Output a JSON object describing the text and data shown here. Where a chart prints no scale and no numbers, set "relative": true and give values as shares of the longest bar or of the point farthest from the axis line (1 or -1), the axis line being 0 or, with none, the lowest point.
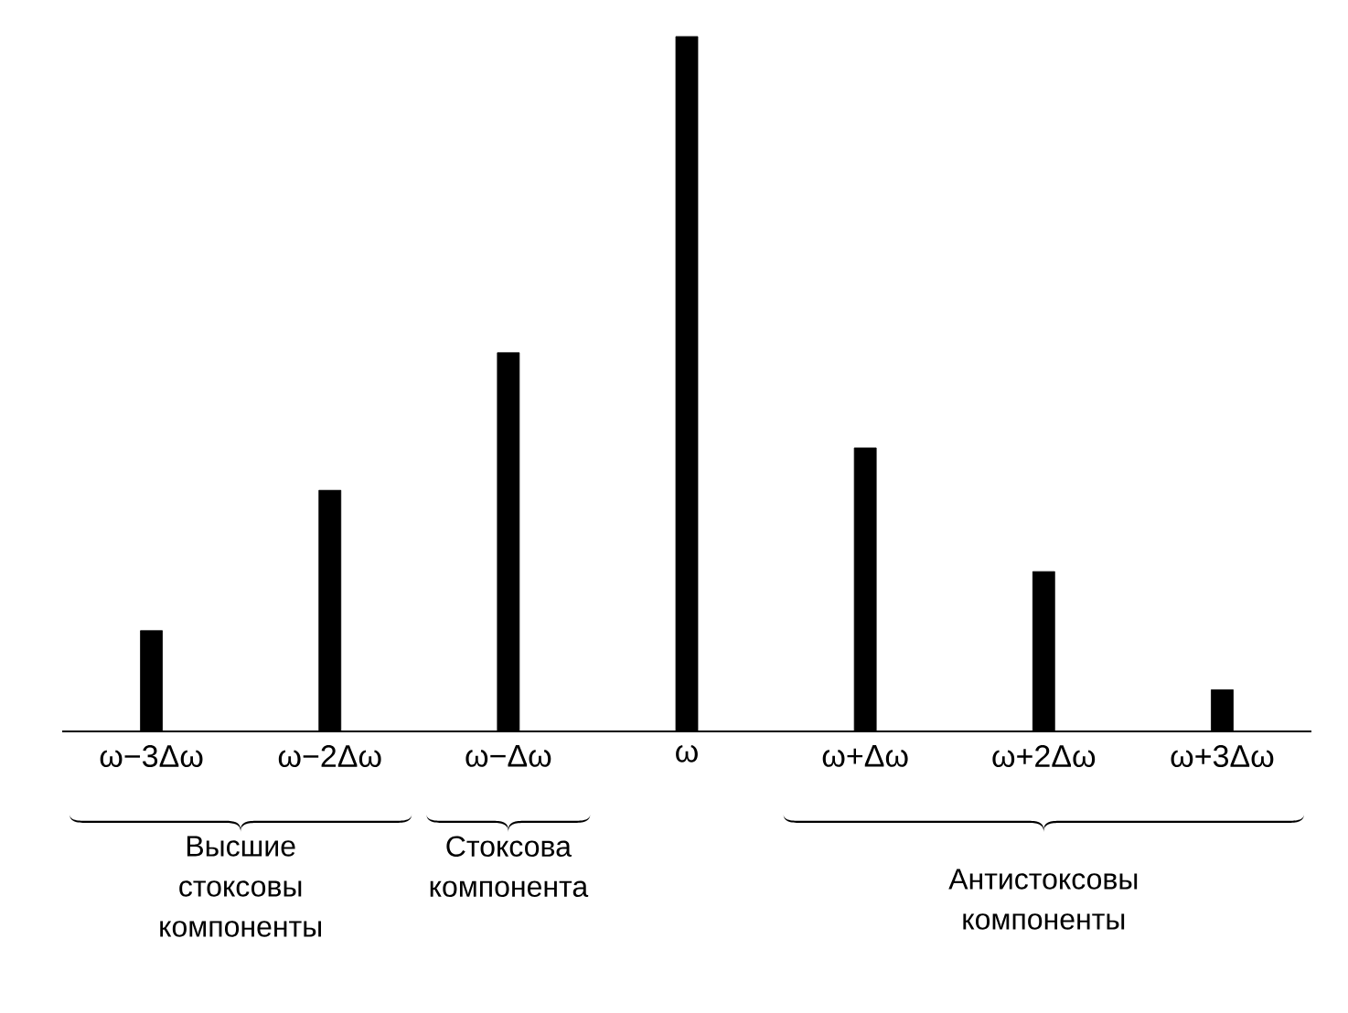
{
  "chart_data": {
    "type": "bar",
    "relative": true,
    "color": "#000000",
    "categories": [
      "ω−3Δω",
      "ω−2Δω",
      "ω−Δω",
      "ω",
      "ω+Δω",
      "ω+2Δω",
      "ω+3Δω"
    ],
    "values": [
      0.145,
      0.347,
      0.545,
      1,
      0.408,
      0.23,
      0.06
    ],
    "annotations": [
      "Высшие стоксовы компоненты",
      "Стоксова компонента",
      "Антистоксовы компоненты"
    ]
  }
}
